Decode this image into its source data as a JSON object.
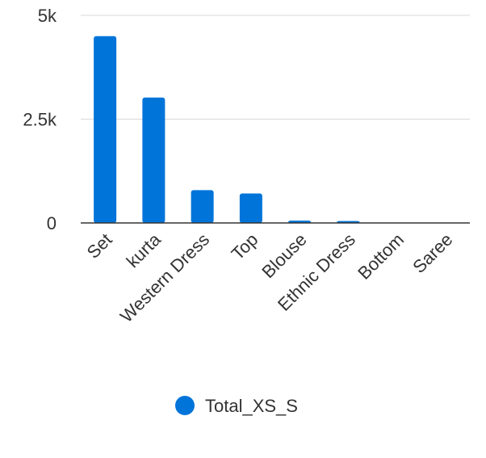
{
  "chart_data": {
    "type": "bar",
    "title": "",
    "xlabel": "",
    "ylabel": "",
    "categories": [
      "Set",
      "kurta",
      "Western Dress",
      "Top",
      "Blouse",
      "Ethnic Dress",
      "Bottom",
      "Saree"
    ],
    "series": [
      {
        "name": "Total_XS_S",
        "color": "#0074d9",
        "values": [
          4500,
          3020,
          790,
          710,
          55,
          45,
          5,
          3
        ]
      }
    ],
    "ylim": [
      0,
      5000
    ],
    "yticks": [
      {
        "value": 0,
        "label": "0"
      },
      {
        "value": 2500,
        "label": "2.5k"
      },
      {
        "value": 5000,
        "label": "5k"
      }
    ],
    "grid": true,
    "legend_position": "bottom"
  }
}
